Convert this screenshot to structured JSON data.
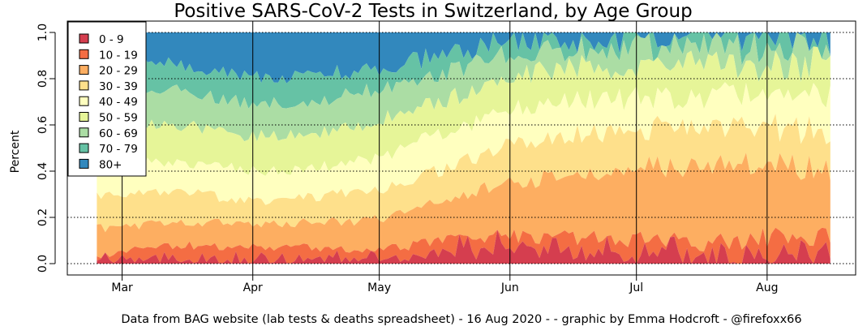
{
  "chart_data": {
    "type": "area",
    "stacked": true,
    "normalized": true,
    "title": "Positive SARS-CoV-2 Tests in Switzerland, by Age Group",
    "ylabel": "Percent",
    "xlabel": "",
    "caption": "Data from BAG website (lab tests & deaths spreadsheet) - 16 Aug 2020 -  - graphic by Emma Hodcroft - @firefoxx66",
    "x_start": "2020-02-24",
    "x_end": "2020-08-16",
    "xlim": [
      "2020-02-17",
      "2020-08-22"
    ],
    "ylim": [
      0,
      1
    ],
    "y_ticks": [
      "0.0",
      "0.2",
      "0.4",
      "0.6",
      "0.8",
      "1.0"
    ],
    "x_ticks": [
      {
        "label": "Mar",
        "date": "2020-03-01"
      },
      {
        "label": "Apr",
        "date": "2020-04-01"
      },
      {
        "label": "May",
        "date": "2020-05-01"
      },
      {
        "label": "Jun",
        "date": "2020-06-01"
      },
      {
        "label": "Jul",
        "date": "2020-07-01"
      },
      {
        "label": "Aug",
        "date": "2020-08-01"
      }
    ],
    "legend_position": "top-left",
    "grid": "dotted horizontal lines at y ticks, solid vertical lines at month starts",
    "series": [
      {
        "name": "0 - 9",
        "color": "#d53e4f"
      },
      {
        "name": "10 - 19",
        "color": "#f46d43"
      },
      {
        "name": "20 - 29",
        "color": "#fdae61"
      },
      {
        "name": "30 - 39",
        "color": "#fee08b"
      },
      {
        "name": "40 - 49",
        "color": "#ffffbf"
      },
      {
        "name": "50 - 59",
        "color": "#e6f598"
      },
      {
        "name": "60 - 69",
        "color": "#abdda4"
      },
      {
        "name": "70 - 79",
        "color": "#66c2a5"
      },
      {
        "name": "80+",
        "color": "#3288bd"
      }
    ],
    "cumulative_boundaries_by_month": {
      "dates": [
        "2020-02-24",
        "2020-03-01",
        "2020-03-15",
        "2020-04-01",
        "2020-04-15",
        "2020-05-01",
        "2020-05-15",
        "2020-06-01",
        "2020-06-15",
        "2020-07-01",
        "2020-07-15",
        "2020-08-01",
        "2020-08-16"
      ],
      "upper_bounds": [
        [
          0.01,
          0.02,
          0.02,
          0.01,
          0.02,
          0.02,
          0.04,
          0.06,
          0.04,
          0.03,
          0.02,
          0.02,
          0.02
        ],
        [
          0.03,
          0.06,
          0.08,
          0.07,
          0.07,
          0.06,
          0.1,
          0.12,
          0.11,
          0.1,
          0.09,
          0.11,
          0.12
        ],
        [
          0.15,
          0.16,
          0.18,
          0.17,
          0.18,
          0.19,
          0.27,
          0.35,
          0.38,
          0.42,
          0.42,
          0.44,
          0.4
        ],
        [
          0.3,
          0.3,
          0.31,
          0.27,
          0.29,
          0.32,
          0.4,
          0.52,
          0.56,
          0.58,
          0.6,
          0.59,
          0.57
        ],
        [
          0.45,
          0.43,
          0.44,
          0.4,
          0.41,
          0.46,
          0.56,
          0.67,
          0.7,
          0.72,
          0.73,
          0.73,
          0.72
        ],
        [
          0.6,
          0.6,
          0.6,
          0.55,
          0.56,
          0.62,
          0.7,
          0.8,
          0.85,
          0.85,
          0.86,
          0.86,
          0.86
        ],
        [
          0.8,
          0.76,
          0.75,
          0.69,
          0.7,
          0.76,
          0.82,
          0.9,
          0.93,
          0.93,
          0.94,
          0.93,
          0.94
        ],
        [
          0.93,
          0.88,
          0.86,
          0.8,
          0.81,
          0.85,
          0.9,
          0.96,
          0.97,
          0.97,
          0.98,
          0.97,
          0.98
        ],
        [
          1.0,
          1.0,
          1.0,
          1.0,
          1.0,
          1.0,
          1.0,
          1.0,
          1.0,
          1.0,
          1.0,
          1.0,
          1.0
        ]
      ]
    }
  }
}
